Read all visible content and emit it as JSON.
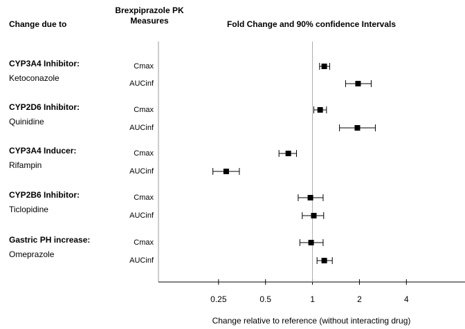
{
  "chart_data": {
    "type": "forest",
    "title": "Fold Change and 90% confidence Intervals",
    "column_headers": [
      "Change due to",
      "Brexpiprazole PK Measures"
    ],
    "xlabel": "Change relative to reference (without interacting drug)",
    "log_x": true,
    "xlim": [
      0.103,
      9.5
    ],
    "xticks": [
      0.25,
      0.5,
      1,
      2,
      4
    ],
    "reference_line": 1,
    "color": "#000000",
    "groups": [
      {
        "label": "CYP3A4 Inhibitor:",
        "drug": "Ketoconazole",
        "rows": [
          {
            "measure": "Cmax",
            "value": 1.19,
            "ci": [
              1.11,
              1.29
            ]
          },
          {
            "measure": "AUCinf",
            "value": 1.96,
            "ci": [
              1.63,
              2.38
            ]
          }
        ]
      },
      {
        "label": "CYP2D6 Inhibitor:",
        "drug": "Quinidine",
        "rows": [
          {
            "measure": "Cmax",
            "value": 1.12,
            "ci": [
              1.02,
              1.23
            ]
          },
          {
            "measure": "AUCinf",
            "value": 1.94,
            "ci": [
              1.49,
              2.53
            ]
          }
        ]
      },
      {
        "label": "CYP3A4 Inducer:",
        "drug": "Rifampin",
        "rows": [
          {
            "measure": "Cmax",
            "value": 0.7,
            "ci": [
              0.61,
              0.79
            ]
          },
          {
            "measure": "AUCinf",
            "value": 0.28,
            "ci": [
              0.23,
              0.34
            ]
          }
        ]
      },
      {
        "label": "CYP2B6 Inhibitor:",
        "drug": "Ticlopidine",
        "rows": [
          {
            "measure": "Cmax",
            "value": 0.97,
            "ci": [
              0.81,
              1.17
            ]
          },
          {
            "measure": "AUCinf",
            "value": 1.02,
            "ci": [
              0.86,
              1.18
            ]
          }
        ]
      },
      {
        "label": "Gastric PH increase:",
        "drug": "Omeprazole",
        "rows": [
          {
            "measure": "Cmax",
            "value": 0.98,
            "ci": [
              0.83,
              1.17
            ]
          },
          {
            "measure": "AUCinf",
            "value": 1.19,
            "ci": [
              1.07,
              1.34
            ]
          }
        ]
      }
    ]
  }
}
